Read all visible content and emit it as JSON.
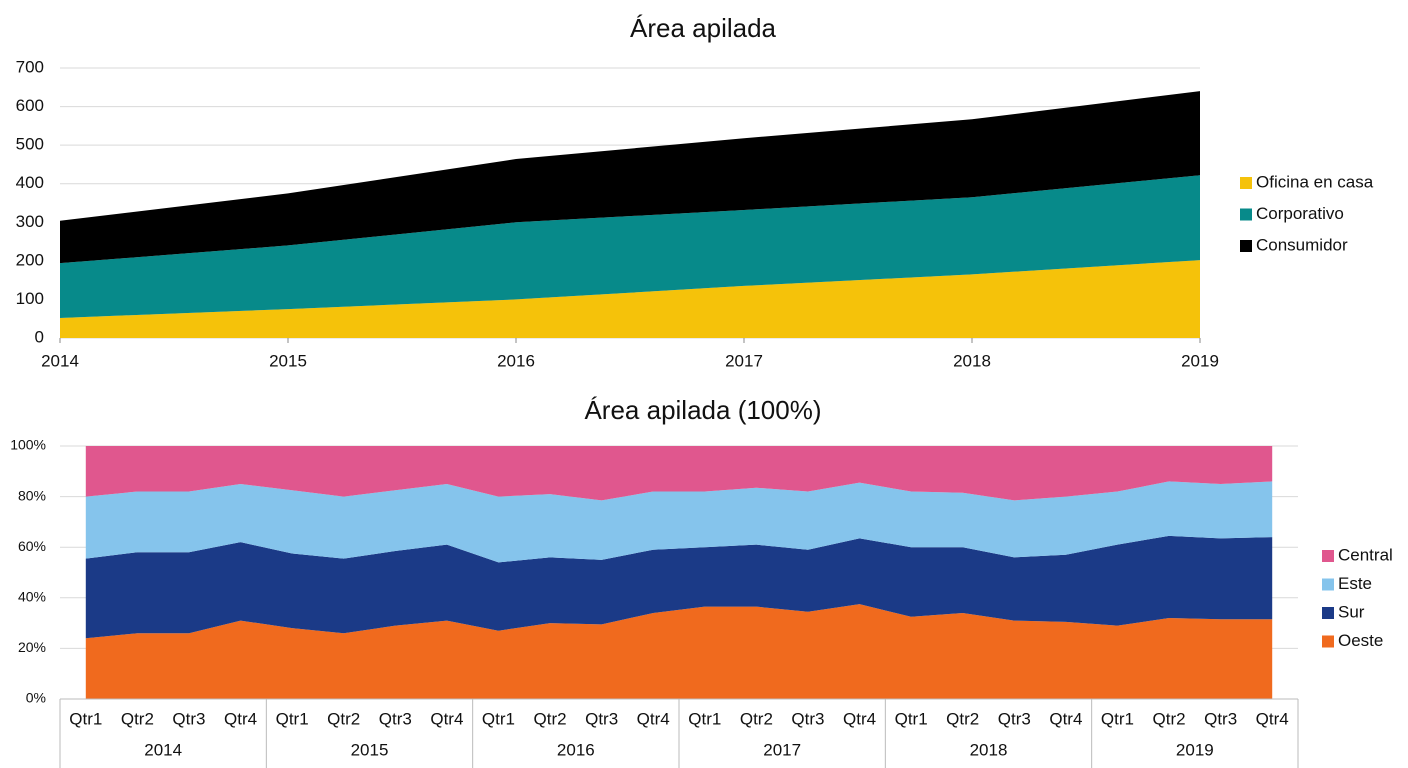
{
  "chart_data": [
    {
      "type": "stacked_area",
      "title": "Área apilada",
      "x": [
        2014,
        2015,
        2016,
        2017,
        2018,
        2019
      ],
      "xlim": [
        2014,
        2019
      ],
      "xticks": [
        2014,
        2015,
        2016,
        2017,
        2018,
        2019
      ],
      "ylim": [
        0,
        700
      ],
      "yticks": [
        0,
        100,
        200,
        300,
        400,
        500,
        600,
        700
      ],
      "grid": true,
      "legend": "right",
      "series": [
        {
          "name": "Oficina en casa",
          "color": "#f5c20a",
          "values": [
            52,
            75,
            100,
            135,
            165,
            202
          ]
        },
        {
          "name": "Corporativo",
          "color": "#078a8a",
          "values": [
            142,
            165,
            200,
            197,
            200,
            220
          ]
        },
        {
          "name": "Consumidor",
          "color": "#000000",
          "values": [
            110,
            135,
            164,
            186,
            202,
            218
          ]
        }
      ]
    },
    {
      "type": "stacked_area_100",
      "title": "Área apilada (100%)",
      "categories": [
        "Qtr1",
        "Qtr2",
        "Qtr3",
        "Qtr4",
        "Qtr1",
        "Qtr2",
        "Qtr3",
        "Qtr4",
        "Qtr1",
        "Qtr2",
        "Qtr3",
        "Qtr4",
        "Qtr1",
        "Qtr2",
        "Qtr3",
        "Qtr4",
        "Qtr1",
        "Qtr2",
        "Qtr3",
        "Qtr4",
        "Qtr1",
        "Qtr2",
        "Qtr3",
        "Qtr4"
      ],
      "category_groups": [
        "2014",
        "2015",
        "2016",
        "2017",
        "2018",
        "2019"
      ],
      "ylim": [
        0,
        100
      ],
      "yticks": [
        {
          "value": 0,
          "label": "0%"
        },
        {
          "value": 20,
          "label": "20%"
        },
        {
          "value": 40,
          "label": "40%"
        },
        {
          "value": 60,
          "label": "60%"
        },
        {
          "value": 80,
          "label": "80%"
        },
        {
          "value": 100,
          "label": "100%"
        }
      ],
      "grid": true,
      "legend": "right",
      "legend_reversed": true,
      "series": [
        {
          "name": "Oeste",
          "color": "#f06a1e",
          "values": [
            24,
            26,
            26,
            31,
            28,
            26,
            29,
            31,
            27,
            30,
            29.5,
            34,
            36.5,
            36.5,
            34.5,
            37.5,
            32.5,
            34,
            31,
            30.5,
            29,
            32,
            31.5,
            31.5
          ]
        },
        {
          "name": "Sur",
          "color": "#1b3a87",
          "values": [
            31.5,
            32,
            32,
            31,
            29.5,
            29.5,
            29.5,
            30,
            27,
            26,
            25.5,
            25,
            23.5,
            24.5,
            24.5,
            26,
            27.5,
            26,
            25,
            26.5,
            32,
            32.5,
            32,
            32.5
          ]
        },
        {
          "name": "Este",
          "color": "#85c4ec",
          "values": [
            24.5,
            24,
            24,
            23,
            25,
            24.5,
            24,
            24,
            26,
            25,
            23.5,
            23,
            22,
            22.5,
            23,
            22,
            22,
            21.5,
            22.5,
            23,
            21,
            21.5,
            21.5,
            22
          ]
        },
        {
          "name": "Central",
          "color": "#e0578e",
          "values": [
            20,
            18,
            18,
            15,
            17.5,
            20,
            17.5,
            15,
            20,
            19,
            21.5,
            18,
            18,
            16.5,
            18,
            14.5,
            18,
            18.5,
            21.5,
            20,
            18,
            14,
            15,
            14
          ]
        }
      ]
    }
  ]
}
